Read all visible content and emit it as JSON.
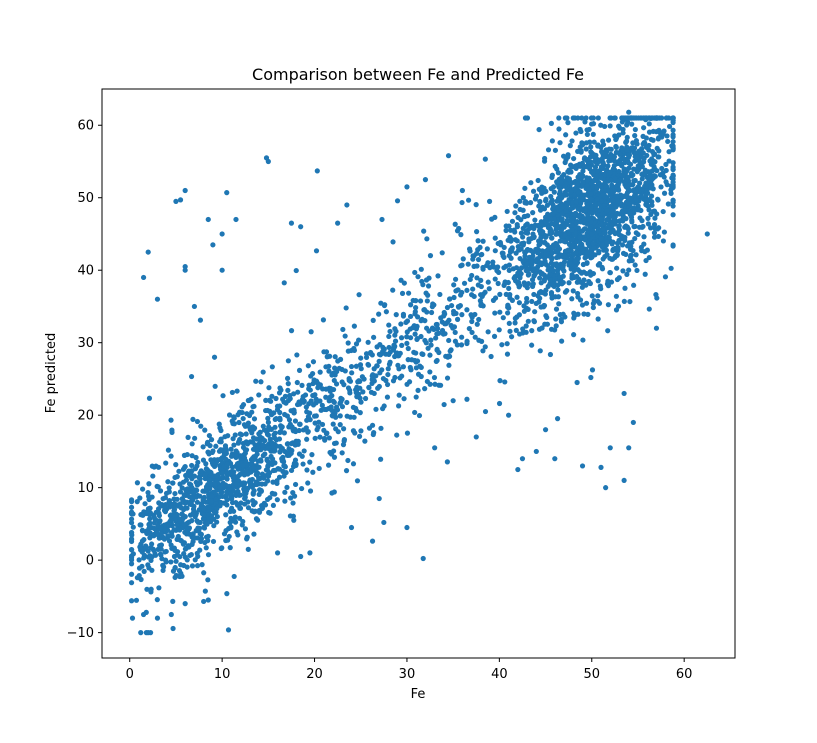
{
  "chart_data": {
    "type": "scatter",
    "title": "Comparison between Fe and Predicted Fe",
    "xlabel": "Fe",
    "ylabel": "Fe predicted",
    "xlim": [
      -3,
      65.5
    ],
    "ylim": [
      -13.5,
      65
    ],
    "xticks": [
      0,
      10,
      20,
      30,
      40,
      50,
      60
    ],
    "yticks": [
      -10,
      0,
      10,
      20,
      30,
      40,
      50,
      60
    ],
    "xtick_labels": [
      "0",
      "10",
      "20",
      "30",
      "40",
      "50",
      "60"
    ],
    "ytick_labels": [
      "−10",
      "0",
      "10",
      "20",
      "30",
      "40",
      "50",
      "60"
    ],
    "grid": false,
    "legend": "none",
    "marker_color": "#1f77b4",
    "point_count": 3600,
    "trend": {
      "description": "positive linear relationship, cluster density highest near (50, 48)",
      "x_range": [
        0,
        62.5
      ],
      "y_range": [
        -10,
        62
      ]
    },
    "series": [
      {
        "points_notable": [
          [
            0.3,
            -8
          ],
          [
            2,
            -10
          ],
          [
            1.5,
            -7.5
          ],
          [
            3,
            -8
          ],
          [
            4.5,
            -7.5
          ],
          [
            2,
            42.5
          ],
          [
            1.5,
            39
          ],
          [
            3,
            36
          ],
          [
            5,
            49.5
          ],
          [
            5.5,
            49.7
          ],
          [
            6,
            51
          ],
          [
            6,
            40.5
          ],
          [
            6,
            40
          ],
          [
            7,
            35
          ],
          [
            8.5,
            47
          ],
          [
            9,
            43.5
          ],
          [
            10,
            45
          ],
          [
            10.5,
            50.7
          ],
          [
            10,
            40
          ],
          [
            11.5,
            47
          ],
          [
            14.8,
            55.5
          ],
          [
            15,
            55
          ],
          [
            20.3,
            53.7
          ],
          [
            17.5,
            46.5
          ],
          [
            18.5,
            46
          ],
          [
            23.5,
            49
          ],
          [
            22.5,
            46.5
          ],
          [
            27.3,
            47
          ],
          [
            30,
            51.5
          ],
          [
            32,
            52.5
          ],
          [
            34.5,
            55.8
          ],
          [
            36,
            51
          ],
          [
            44.3,
            59.4
          ],
          [
            54,
            61.8
          ],
          [
            62.5,
            45
          ],
          [
            57,
            32
          ],
          [
            53.5,
            11
          ],
          [
            51.5,
            10
          ],
          [
            49,
            13
          ],
          [
            51,
            12.8
          ],
          [
            52,
            15.5
          ],
          [
            54,
            15.5
          ],
          [
            53.5,
            23
          ],
          [
            54.5,
            19
          ],
          [
            42,
            12.5
          ],
          [
            42.5,
            14
          ],
          [
            46,
            14
          ],
          [
            45,
            18
          ],
          [
            44,
            15
          ],
          [
            30,
            4.5
          ],
          [
            27.5,
            5.2
          ],
          [
            24,
            4.5
          ],
          [
            27,
            8.5
          ],
          [
            19.5,
            1
          ],
          [
            18.5,
            0.5
          ],
          [
            16,
            1
          ],
          [
            8.5,
            -5.5
          ],
          [
            8,
            -5.7
          ],
          [
            6,
            -6
          ],
          [
            37.5,
            17
          ],
          [
            38.5,
            20.5
          ],
          [
            41,
            20
          ],
          [
            35,
            22
          ],
          [
            31,
            22.5
          ],
          [
            33,
            15.5
          ]
        ]
      }
    ]
  }
}
